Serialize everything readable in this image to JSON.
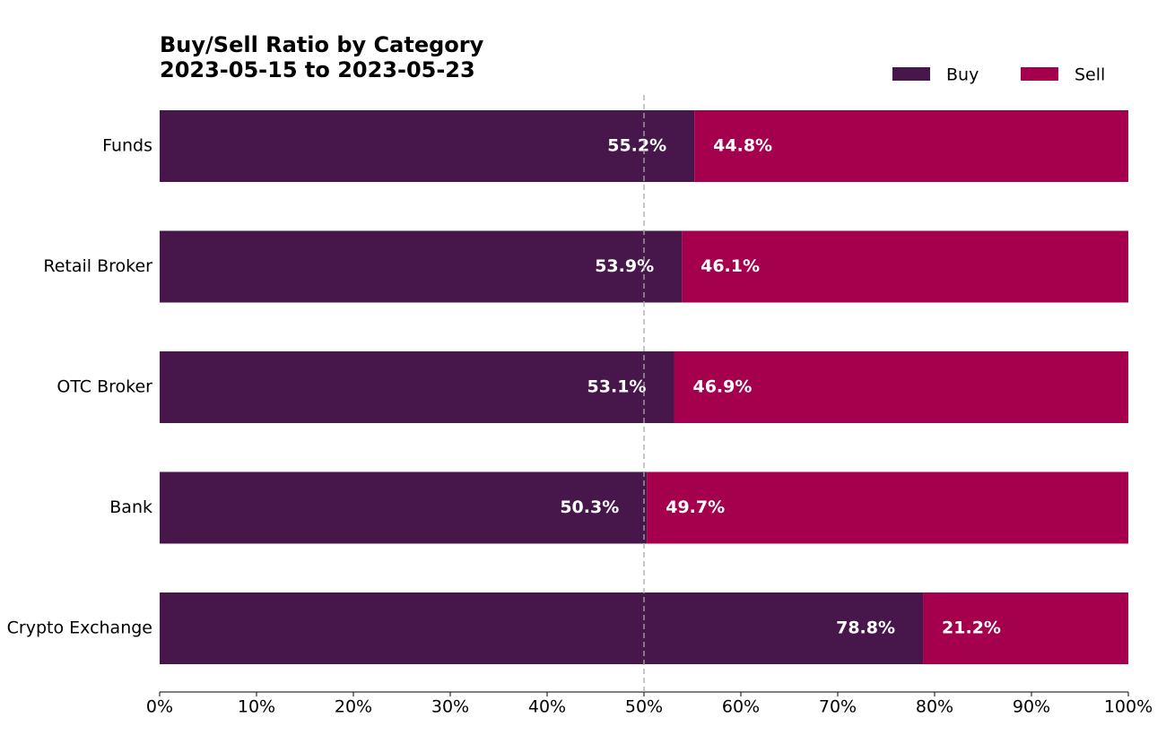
{
  "chart_data": {
    "type": "stacked_barh",
    "title": "Buy/Sell Ratio by Category",
    "subtitle": "2023-05-15 to 2023-05-23",
    "categories": [
      "Funds",
      "Retail Broker",
      "OTC Broker",
      "Bank",
      "Crypto Exchange"
    ],
    "series": [
      {
        "name": "Buy",
        "color": "#47174b",
        "values": [
          55.2,
          53.9,
          53.1,
          50.3,
          78.8
        ],
        "value_labels": [
          "55.2%",
          "53.9%",
          "53.1%",
          "50.3%",
          "78.8%"
        ]
      },
      {
        "name": "Sell",
        "color": "#a5004d",
        "values": [
          44.8,
          46.1,
          46.9,
          49.7,
          21.2
        ],
        "value_labels": [
          "44.8%",
          "46.1%",
          "46.9%",
          "49.7%",
          "21.2%"
        ]
      }
    ],
    "xlim": [
      0,
      100
    ],
    "xticks": [
      {
        "value": 0,
        "label": "0%"
      },
      {
        "value": 10,
        "label": "10%"
      },
      {
        "value": 20,
        "label": "20%"
      },
      {
        "value": 30,
        "label": "30%"
      },
      {
        "value": 40,
        "label": "40%"
      },
      {
        "value": 50,
        "label": "50%"
      },
      {
        "value": 60,
        "label": "60%"
      },
      {
        "value": 70,
        "label": "70%"
      },
      {
        "value": 80,
        "label": "80%"
      },
      {
        "value": 90,
        "label": "90%"
      },
      {
        "value": 100,
        "label": "100%"
      }
    ],
    "reference_line": 50,
    "legend": "top-right",
    "grid": false
  }
}
